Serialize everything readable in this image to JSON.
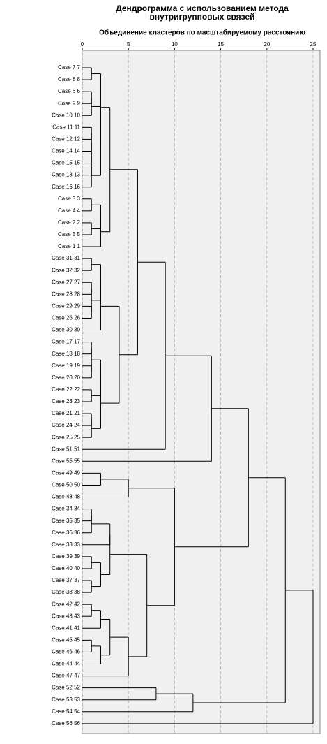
{
  "chart_data": {
    "type": "dendrogram",
    "title": "Дендрограмма с использованием метода внутригрупповых связей",
    "subtitle": "Объединение кластеров по масштабируемому расстоянию",
    "xlim": [
      0,
      25
    ],
    "xticks": [
      0,
      5,
      10,
      15,
      20,
      25
    ],
    "grid": true,
    "color": "#000000",
    "tree": {
      "height": 25,
      "children": [
        {
          "height": 22,
          "children": [
            {
              "height": 18,
              "children": [
                {
                  "height": 14,
                  "children": [
                    {
                      "height": 9,
                      "children": [
                        {
                          "height": 6,
                          "children": [
                            {
                              "height": 3,
                              "children": [
                                {
                                  "height": 2,
                                  "children": [
                                    {
                                      "height": 1,
                                      "children": [
                                        "Case 7 7",
                                        "Case 8 8"
                                      ]
                                    },
                                    {
                                      "height": 2,
                                      "children": [
                                        {
                                          "height": 1,
                                          "children": [
                                            {
                                              "height": 1,
                                              "children": [
                                                "Case 6 6",
                                                "Case 9 9"
                                              ]
                                            },
                                            "Case 10 10"
                                          ]
                                        },
                                        {
                                          "height": 1,
                                          "children": [
                                            {
                                              "height": 1,
                                              "children": [
                                                {
                                                  "height": 1,
                                                  "children": [
                                                    {
                                                      "height": 1,
                                                      "children": [
                                                        {
                                                          "height": 1,
                                                          "children": [
                                                            "Case 11 11",
                                                            "Case 12 12"
                                                          ]
                                                        },
                                                        "Case 14 14"
                                                      ]
                                                    },
                                                    "Case 15 15"
                                                  ]
                                                },
                                                "Case 13 13"
                                              ]
                                            },
                                            "Case 16 16"
                                          ]
                                        }
                                      ]
                                    }
                                  ]
                                },
                                {
                                  "height": 2,
                                  "children": [
                                    {
                                      "height": 2,
                                      "children": [
                                        {
                                          "height": 1,
                                          "children": [
                                            "Case 3 3",
                                            "Case 4 4"
                                          ]
                                        },
                                        {
                                          "height": 1,
                                          "children": [
                                            "Case 2 2",
                                            "Case 5 5"
                                          ]
                                        }
                                      ]
                                    },
                                    "Case 1 1"
                                  ]
                                }
                              ]
                            },
                            {
                              "height": 4,
                              "children": [
                                {
                                  "height": 2,
                                  "children": [
                                    {
                                      "height": 2,
                                      "children": [
                                        {
                                          "height": 1,
                                          "children": [
                                            "Case 31 31",
                                            "Case 32 32"
                                          ]
                                        },
                                        {
                                          "height": 1,
                                          "children": [
                                            {
                                              "height": 1,
                                              "children": [
                                                "Case 27 27",
                                                "Case 28 28"
                                              ]
                                            },
                                            {
                                              "height": 1,
                                              "children": [
                                                "Case 29 29",
                                                "Case 26 26"
                                              ]
                                            }
                                          ]
                                        }
                                      ]
                                    },
                                    "Case 30 30"
                                  ]
                                },
                                {
                                  "height": 2,
                                  "children": [
                                    {
                                      "height": 2,
                                      "children": [
                                        {
                                          "height": 1,
                                          "children": [
                                            {
                                              "height": 1,
                                              "children": [
                                                "Case 17 17",
                                                "Case 18 18"
                                              ]
                                            },
                                            {
                                              "height": 1,
                                              "children": [
                                                "Case 19 19",
                                                "Case 20 20"
                                              ]
                                            }
                                          ]
                                        },
                                        {
                                          "height": 1,
                                          "children": [
                                            "Case 22 22",
                                            "Case 23 23"
                                          ]
                                        }
                                      ]
                                    },
                                    {
                                      "height": 1,
                                      "children": [
                                        {
                                          "height": 1,
                                          "children": [
                                            "Case 21 21",
                                            "Case 24 24"
                                          ]
                                        },
                                        "Case 25 25"
                                      ]
                                    }
                                  ]
                                }
                              ]
                            }
                          ]
                        },
                        "Case 51 51"
                      ]
                    },
                    "Case 55 55"
                  ]
                },
                {
                  "height": 10,
                  "children": [
                    {
                      "height": 5,
                      "children": [
                        {
                          "height": 2,
                          "children": [
                            "Case 49 49",
                            "Case 50 50"
                          ]
                        },
                        "Case 48 48"
                      ]
                    },
                    {
                      "height": 7,
                      "children": [
                        {
                          "height": 3,
                          "children": [
                            {
                              "height": 3,
                              "children": [
                                {
                                  "height": 1,
                                  "children": [
                                    {
                                      "height": 1,
                                      "children": [
                                        "Case 34 34",
                                        "Case 35 35"
                                      ]
                                    },
                                    "Case 36 36"
                                  ]
                                },
                                "Case 33 33"
                              ]
                            },
                            {
                              "height": 2,
                              "children": [
                                {
                                  "height": 1,
                                  "children": [
                                    "Case 39 39",
                                    "Case 40 40"
                                  ]
                                },
                                {
                                  "height": 1,
                                  "children": [
                                    "Case 37 37",
                                    "Case 38 38"
                                  ]
                                }
                              ]
                            }
                          ]
                        },
                        {
                          "height": 5,
                          "children": [
                            {
                              "height": 3,
                              "children": [
                                {
                                  "height": 2,
                                  "children": [
                                    {
                                      "height": 1,
                                      "children": [
                                        "Case 42 42",
                                        "Case 43 43"
                                      ]
                                    },
                                    "Case 41 41"
                                  ]
                                },
                                {
                                  "height": 2,
                                  "children": [
                                    {
                                      "height": 1,
                                      "children": [
                                        "Case 45 45",
                                        "Case 46 46"
                                      ]
                                    },
                                    "Case 44 44"
                                  ]
                                }
                              ]
                            },
                            "Case 47 47"
                          ]
                        }
                      ]
                    }
                  ]
                }
              ]
            },
            {
              "height": 12,
              "children": [
                {
                  "height": 8,
                  "children": [
                    "Case 52 52",
                    "Case 53 53"
                  ]
                },
                "Case 54 54"
              ]
            }
          ]
        },
        "Case 56 56"
      ]
    }
  }
}
